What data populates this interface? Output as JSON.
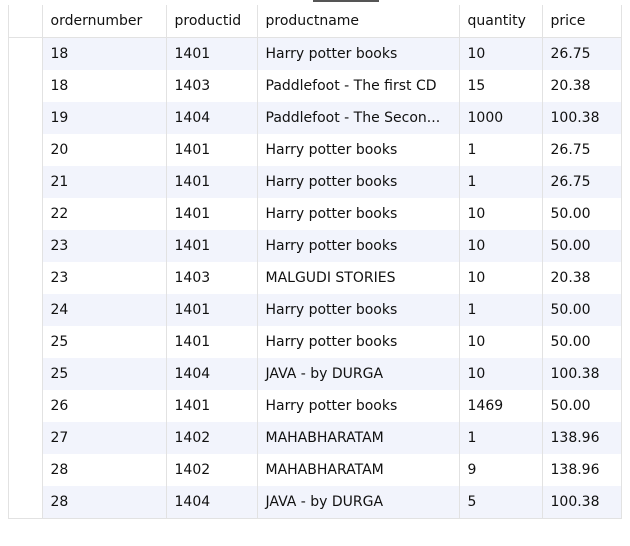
{
  "grid": {
    "columns": [
      "ordernumber",
      "productid",
      "productname",
      "quantity",
      "price"
    ],
    "rows": [
      [
        "18",
        "1401",
        "Harry potter books",
        "10",
        "26.75"
      ],
      [
        "18",
        "1403",
        "Paddlefoot - The first CD",
        "15",
        "20.38"
      ],
      [
        "19",
        "1404",
        "Paddlefoot - The Secon...",
        "1000",
        "100.38"
      ],
      [
        "20",
        "1401",
        "Harry potter books",
        "1",
        "26.75"
      ],
      [
        "21",
        "1401",
        "Harry potter books",
        "1",
        "26.75"
      ],
      [
        "22",
        "1401",
        "Harry potter books",
        "10",
        "50.00"
      ],
      [
        "23",
        "1401",
        "Harry potter books",
        "10",
        "50.00"
      ],
      [
        "23",
        "1403",
        "MALGUDI STORIES",
        "10",
        "20.38"
      ],
      [
        "24",
        "1401",
        "Harry potter books",
        "1",
        "50.00"
      ],
      [
        "25",
        "1401",
        "Harry potter books",
        "10",
        "50.00"
      ],
      [
        "25",
        "1404",
        "JAVA - by DURGA",
        "10",
        "100.38"
      ],
      [
        "26",
        "1401",
        "Harry potter books",
        "1469",
        "50.00"
      ],
      [
        "27",
        "1402",
        "MAHABHARATAM",
        "1",
        "138.96"
      ],
      [
        "28",
        "1402",
        "MAHABHARATAM",
        "9",
        "138.96"
      ],
      [
        "28",
        "1404",
        "JAVA - by DURGA",
        "5",
        "100.38"
      ]
    ]
  },
  "colors": {
    "stripe": "#f2f4fc",
    "gridline": "#e2e2e2",
    "text": "#111111"
  }
}
